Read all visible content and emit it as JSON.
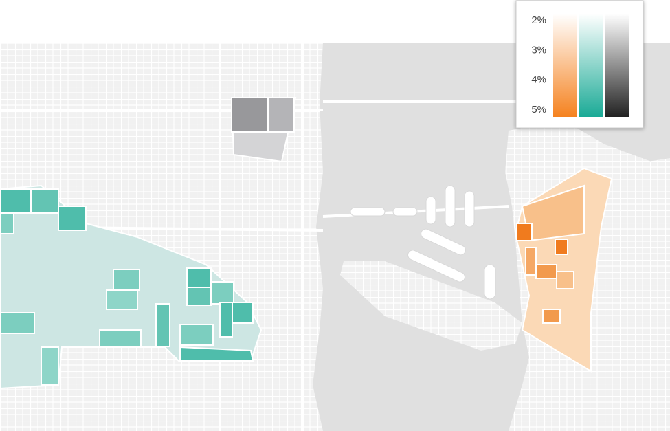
{
  "legend": {
    "range": [
      2,
      5
    ],
    "ticks": [
      {
        "value": 2,
        "label": "2%"
      },
      {
        "value": 3,
        "label": "3%"
      },
      {
        "value": 4,
        "label": "4%"
      },
      {
        "value": 5,
        "label": "5%"
      }
    ],
    "bars": [
      {
        "color": "#f5821f"
      },
      {
        "color": "#1aaa96"
      },
      {
        "color": "#222222"
      }
    ]
  }
}
